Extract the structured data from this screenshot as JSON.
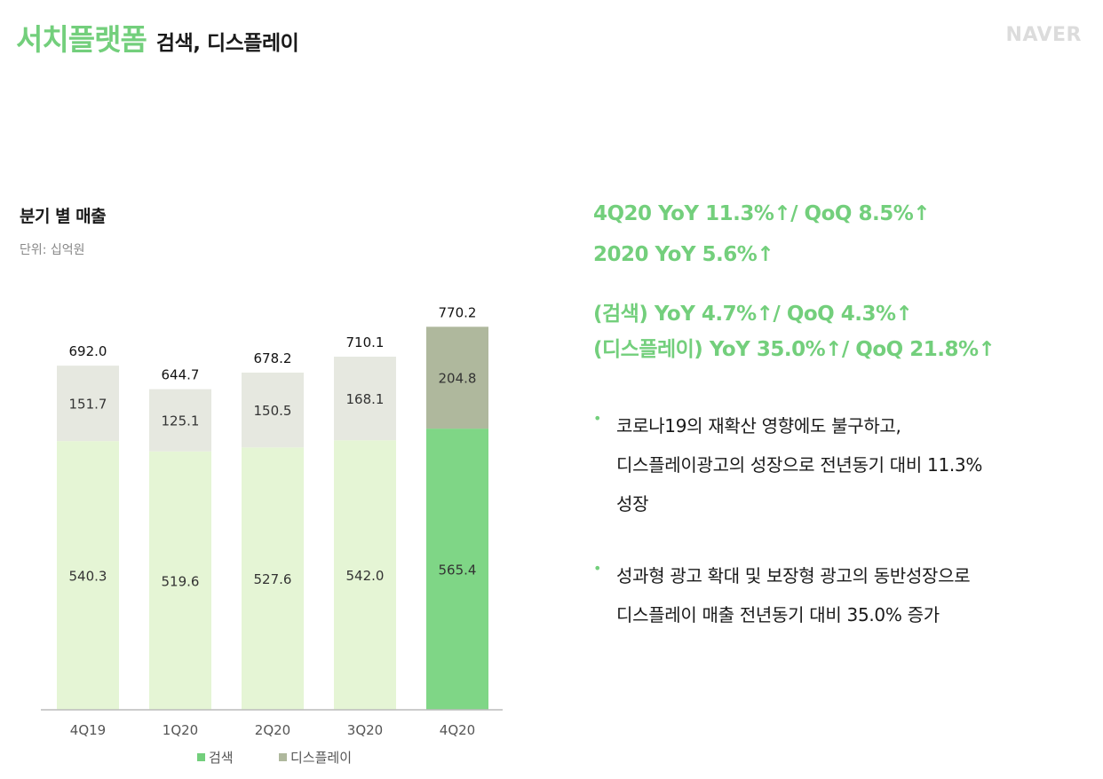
{
  "header": {
    "title_main": "서치플랫폼",
    "title_sub": "검색, 디스플레이",
    "logo": "NAVER"
  },
  "chart_section": {
    "title": "분기 별 매출",
    "unit": "단위: 십억원"
  },
  "chart_data": {
    "type": "bar",
    "stacked": true,
    "title": "분기 별 매출",
    "unit": "단위: 십억원",
    "categories": [
      "4Q19",
      "1Q20",
      "2Q20",
      "3Q20",
      "4Q20"
    ],
    "series": [
      {
        "name": "검색",
        "values": [
          540.3,
          519.6,
          527.6,
          542.0,
          565.4
        ],
        "colors": [
          "#e5f5d5",
          "#e5f5d5",
          "#e5f5d5",
          "#e5f5d5",
          "#7fd686"
        ]
      },
      {
        "name": "디스플레이",
        "values": [
          151.7,
          125.1,
          150.5,
          168.1,
          204.8
        ],
        "colors": [
          "#e6e8e0",
          "#e6e8e0",
          "#e6e8e0",
          "#e6e8e0",
          "#afb89d"
        ]
      }
    ],
    "totals": [
      692.0,
      644.7,
      678.2,
      710.1,
      770.2
    ],
    "legend": [
      {
        "name": "검색",
        "color": "#73cf7c"
      },
      {
        "name": "디스플레이",
        "color": "#afb89d"
      }
    ],
    "legend_position": "bottom",
    "ylim": [
      0,
      800
    ],
    "grid": false
  },
  "highlights": {
    "line1": "4Q20 YoY 11.3%↑/ QoQ 8.5%↑",
    "line2": "2020 YoY 5.6%↑",
    "line3": "(검색) YoY 4.7%↑/ QoQ 4.3%↑",
    "line4": "(디스플레이) YoY 35.0%↑/ QoQ 21.8%↑"
  },
  "bullets": [
    {
      "marker": "•",
      "lines": [
        "코로나19의 재확산 영향에도 불구하고,",
        "디스플레이광고의 성장으로 전년동기 대비 11.3%",
        "성장"
      ]
    },
    {
      "marker": "•",
      "lines": [
        "성과형 광고 확대 및 보장형 광고의 동반성장으로",
        "디스플레이 매출 전년동기 대비 35.0% 증가"
      ]
    }
  ],
  "colors": {
    "accent": "#73cf7c",
    "search_light": "#e5f5d5",
    "search_highlight": "#7fd686",
    "display_light": "#e6e8e0",
    "display_highlight": "#afb89d",
    "axis": "#bbbbbb"
  }
}
